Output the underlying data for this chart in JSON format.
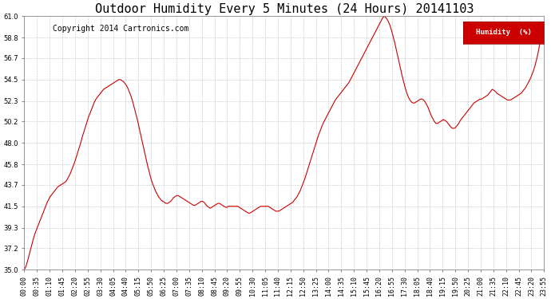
{
  "title": "Outdoor Humidity Every 5 Minutes (24 Hours) 20141103",
  "copyright": "Copyright 2014 Cartronics.com",
  "legend_label": "Humidity  (%)",
  "legend_bg": "#cc0000",
  "legend_text_color": "#ffffff",
  "line_color": "#cc0000",
  "background_color": "#ffffff",
  "grid_color": "#aaaaaa",
  "ylim": [
    35.0,
    61.0
  ],
  "yticks": [
    35.0,
    37.2,
    39.3,
    41.5,
    43.7,
    45.8,
    48.0,
    50.2,
    52.3,
    54.5,
    56.7,
    58.8,
    61.0
  ],
  "title_fontsize": 11,
  "copyright_fontsize": 7,
  "tick_label_fontsize": 6,
  "humidity_data": [
    35.0,
    35.3,
    35.8,
    36.4,
    37.0,
    37.6,
    38.2,
    38.7,
    39.1,
    39.5,
    39.9,
    40.3,
    40.7,
    41.1,
    41.5,
    41.9,
    42.2,
    42.5,
    42.7,
    42.9,
    43.1,
    43.3,
    43.5,
    43.6,
    43.7,
    43.8,
    43.9,
    44.0,
    44.2,
    44.5,
    44.8,
    45.2,
    45.6,
    46.0,
    46.5,
    47.0,
    47.5,
    48.0,
    48.6,
    49.1,
    49.6,
    50.1,
    50.6,
    51.0,
    51.4,
    51.8,
    52.2,
    52.5,
    52.7,
    52.9,
    53.1,
    53.3,
    53.5,
    53.6,
    53.7,
    53.8,
    53.9,
    54.0,
    54.1,
    54.2,
    54.3,
    54.4,
    54.5,
    54.5,
    54.4,
    54.3,
    54.1,
    53.9,
    53.6,
    53.2,
    52.8,
    52.3,
    51.7,
    51.1,
    50.5,
    49.8,
    49.1,
    48.4,
    47.7,
    47.0,
    46.3,
    45.6,
    45.0,
    44.4,
    43.9,
    43.5,
    43.1,
    42.8,
    42.5,
    42.3,
    42.1,
    42.0,
    41.9,
    41.8,
    41.8,
    41.9,
    42.0,
    42.2,
    42.4,
    42.5,
    42.6,
    42.6,
    42.5,
    42.4,
    42.3,
    42.2,
    42.1,
    42.0,
    41.9,
    41.8,
    41.7,
    41.6,
    41.6,
    41.7,
    41.8,
    41.9,
    42.0,
    42.0,
    41.9,
    41.7,
    41.5,
    41.4,
    41.3,
    41.4,
    41.5,
    41.6,
    41.7,
    41.8,
    41.8,
    41.7,
    41.6,
    41.5,
    41.4,
    41.4,
    41.5,
    41.5,
    41.5,
    41.5,
    41.5,
    41.5,
    41.5,
    41.4,
    41.3,
    41.2,
    41.1,
    41.0,
    40.9,
    40.8,
    40.8,
    40.9,
    41.0,
    41.1,
    41.2,
    41.3,
    41.4,
    41.5,
    41.5,
    41.5,
    41.5,
    41.5,
    41.5,
    41.4,
    41.3,
    41.2,
    41.1,
    41.0,
    41.0,
    41.0,
    41.1,
    41.2,
    41.3,
    41.4,
    41.5,
    41.6,
    41.7,
    41.8,
    41.9,
    42.1,
    42.3,
    42.5,
    42.8,
    43.1,
    43.5,
    43.9,
    44.3,
    44.8,
    45.3,
    45.8,
    46.3,
    46.8,
    47.3,
    47.8,
    48.3,
    48.8,
    49.2,
    49.6,
    50.0,
    50.3,
    50.6,
    50.9,
    51.2,
    51.5,
    51.8,
    52.1,
    52.4,
    52.6,
    52.8,
    53.0,
    53.2,
    53.4,
    53.6,
    53.8,
    54.0,
    54.2,
    54.5,
    54.8,
    55.1,
    55.4,
    55.7,
    56.0,
    56.3,
    56.6,
    56.9,
    57.2,
    57.5,
    57.8,
    58.1,
    58.4,
    58.7,
    59.0,
    59.3,
    59.6,
    59.9,
    60.2,
    60.5,
    60.8,
    61.0,
    60.9,
    60.7,
    60.4,
    60.0,
    59.5,
    58.9,
    58.3,
    57.6,
    56.9,
    56.2,
    55.5,
    54.8,
    54.2,
    53.6,
    53.1,
    52.7,
    52.4,
    52.2,
    52.1,
    52.1,
    52.2,
    52.3,
    52.4,
    52.5,
    52.5,
    52.4,
    52.2,
    51.9,
    51.6,
    51.2,
    50.8,
    50.5,
    50.2,
    50.0,
    50.0,
    50.1,
    50.2,
    50.3,
    50.4,
    50.3,
    50.2,
    50.0,
    49.8,
    49.6,
    49.5,
    49.5,
    49.6,
    49.8,
    50.0,
    50.3,
    50.5,
    50.7,
    50.9,
    51.1,
    51.3,
    51.5,
    51.7,
    51.9,
    52.1,
    52.2,
    52.3,
    52.4,
    52.5,
    52.5,
    52.6,
    52.7,
    52.8,
    52.9,
    53.1,
    53.3,
    53.5,
    53.4,
    53.3,
    53.1,
    53.0,
    52.9,
    52.8,
    52.7,
    52.6,
    52.5,
    52.4,
    52.4,
    52.4,
    52.5,
    52.6,
    52.7,
    52.8,
    52.9,
    53.0,
    53.1,
    53.3,
    53.5,
    53.7,
    54.0,
    54.3,
    54.6,
    55.0,
    55.4,
    55.9,
    56.5,
    57.2,
    58.0,
    58.9,
    59.5,
    59.2
  ],
  "x_tick_labels": [
    "00:00",
    "00:35",
    "01:10",
    "01:45",
    "02:20",
    "02:55",
    "03:30",
    "04:05",
    "04:40",
    "05:15",
    "05:50",
    "06:25",
    "07:00",
    "07:35",
    "08:10",
    "08:45",
    "09:20",
    "09:55",
    "10:30",
    "11:05",
    "11:40",
    "12:15",
    "12:50",
    "13:25",
    "14:00",
    "14:35",
    "15:10",
    "15:45",
    "16:20",
    "16:55",
    "17:30",
    "18:05",
    "18:40",
    "19:15",
    "19:50",
    "20:25",
    "21:00",
    "21:35",
    "22:10",
    "22:45",
    "23:20",
    "23:55"
  ]
}
